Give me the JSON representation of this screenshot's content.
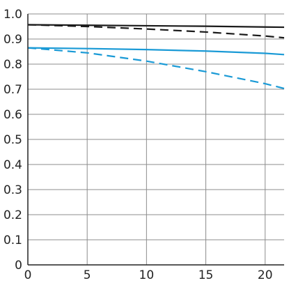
{
  "chart_data": {
    "type": "line",
    "title": "",
    "xlabel": "",
    "ylabel": "",
    "xlim": [
      0,
      21.6
    ],
    "ylim": [
      0,
      1.0
    ],
    "grid": true,
    "legend": "none",
    "x_ticks": [
      "0",
      "5",
      "10",
      "15",
      "20"
    ],
    "x_tick_values": [
      0,
      5,
      10,
      15,
      20
    ],
    "y_ticks": [
      "0",
      "0.1",
      "0.2",
      "0.3",
      "0.4",
      "0.5",
      "0.6",
      "0.7",
      "0.8",
      "0.9",
      "1.0"
    ],
    "y_tick_values": [
      0,
      0.1,
      0.2,
      0.3,
      0.4,
      0.5,
      0.6,
      0.7,
      0.8,
      0.9,
      1.0
    ],
    "series": [
      {
        "color": "#1a1a1a",
        "dash": "solid",
        "x": [
          0,
          5,
          10,
          15,
          20,
          21.6
        ],
        "y": [
          0.957,
          0.955,
          0.953,
          0.951,
          0.948,
          0.947
        ]
      },
      {
        "color": "#1a1a1a",
        "dash": "dashed",
        "x": [
          0,
          5,
          10,
          15,
          20,
          21.6
        ],
        "y": [
          0.957,
          0.95,
          0.94,
          0.928,
          0.912,
          0.905
        ]
      },
      {
        "color": "#1a9ad6",
        "dash": "solid",
        "x": [
          0,
          5,
          10,
          15,
          20,
          21.6
        ],
        "y": [
          0.865,
          0.862,
          0.858,
          0.852,
          0.843,
          0.838
        ]
      },
      {
        "color": "#1a9ad6",
        "dash": "dashed",
        "x": [
          0,
          5,
          10,
          15,
          20,
          21.6
        ],
        "y": [
          0.865,
          0.845,
          0.812,
          0.77,
          0.722,
          0.703
        ]
      }
    ]
  }
}
